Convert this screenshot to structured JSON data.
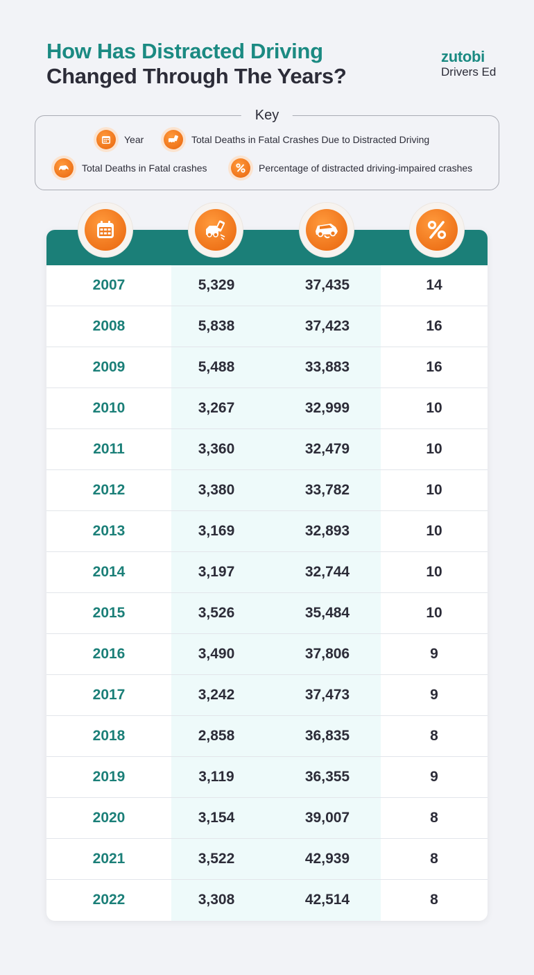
{
  "header": {
    "title_line1": "How Has Distracted Driving",
    "title_line2": "Changed Through The Years?",
    "brand_name": "zutobi",
    "brand_sub": "Drivers Ed"
  },
  "key": {
    "title": "Key",
    "items": [
      {
        "icon": "calendar-icon",
        "label": "Year"
      },
      {
        "icon": "phone-crash-icon",
        "label": "Total Deaths in Fatal Crashes Due to Distracted Driving"
      },
      {
        "icon": "car-crash-icon",
        "label": "Total Deaths in Fatal crashes"
      },
      {
        "icon": "percent-icon",
        "label": "Percentage of distracted driving-impaired crashes"
      }
    ]
  },
  "colors": {
    "teal": "#1b7f78",
    "orange": "#f07a1c",
    "text": "#2c2c38",
    "background": "#f2f3f7"
  },
  "chart_data": {
    "type": "table",
    "columns": [
      "Year",
      "Total Deaths in Fatal Crashes Due to Distracted Driving",
      "Total Deaths in Fatal crashes",
      "Percentage of distracted driving-impaired crashes"
    ],
    "rows": [
      {
        "year": "2007",
        "distracted": "5,329",
        "total": "37,435",
        "pct": "14"
      },
      {
        "year": "2008",
        "distracted": "5,838",
        "total": "37,423",
        "pct": "16"
      },
      {
        "year": "2009",
        "distracted": "5,488",
        "total": "33,883",
        "pct": "16"
      },
      {
        "year": "2010",
        "distracted": "3,267",
        "total": "32,999",
        "pct": "10"
      },
      {
        "year": "2011",
        "distracted": "3,360",
        "total": "32,479",
        "pct": "10"
      },
      {
        "year": "2012",
        "distracted": "3,380",
        "total": "33,782",
        "pct": "10"
      },
      {
        "year": "2013",
        "distracted": "3,169",
        "total": "32,893",
        "pct": "10"
      },
      {
        "year": "2014",
        "distracted": "3,197",
        "total": "32,744",
        "pct": "10"
      },
      {
        "year": "2015",
        "distracted": "3,526",
        "total": "35,484",
        "pct": "10"
      },
      {
        "year": "2016",
        "distracted": "3,490",
        "total": "37,806",
        "pct": "9"
      },
      {
        "year": "2017",
        "distracted": "3,242",
        "total": "37,473",
        "pct": "9"
      },
      {
        "year": "2018",
        "distracted": "2,858",
        "total": "36,835",
        "pct": "8"
      },
      {
        "year": "2019",
        "distracted": "3,119",
        "total": "36,355",
        "pct": "9"
      },
      {
        "year": "2020",
        "distracted": "3,154",
        "total": "39,007",
        "pct": "8"
      },
      {
        "year": "2021",
        "distracted": "3,522",
        "total": "42,939",
        "pct": "8"
      },
      {
        "year": "2022",
        "distracted": "3,308",
        "total": "42,514",
        "pct": "8"
      }
    ]
  }
}
